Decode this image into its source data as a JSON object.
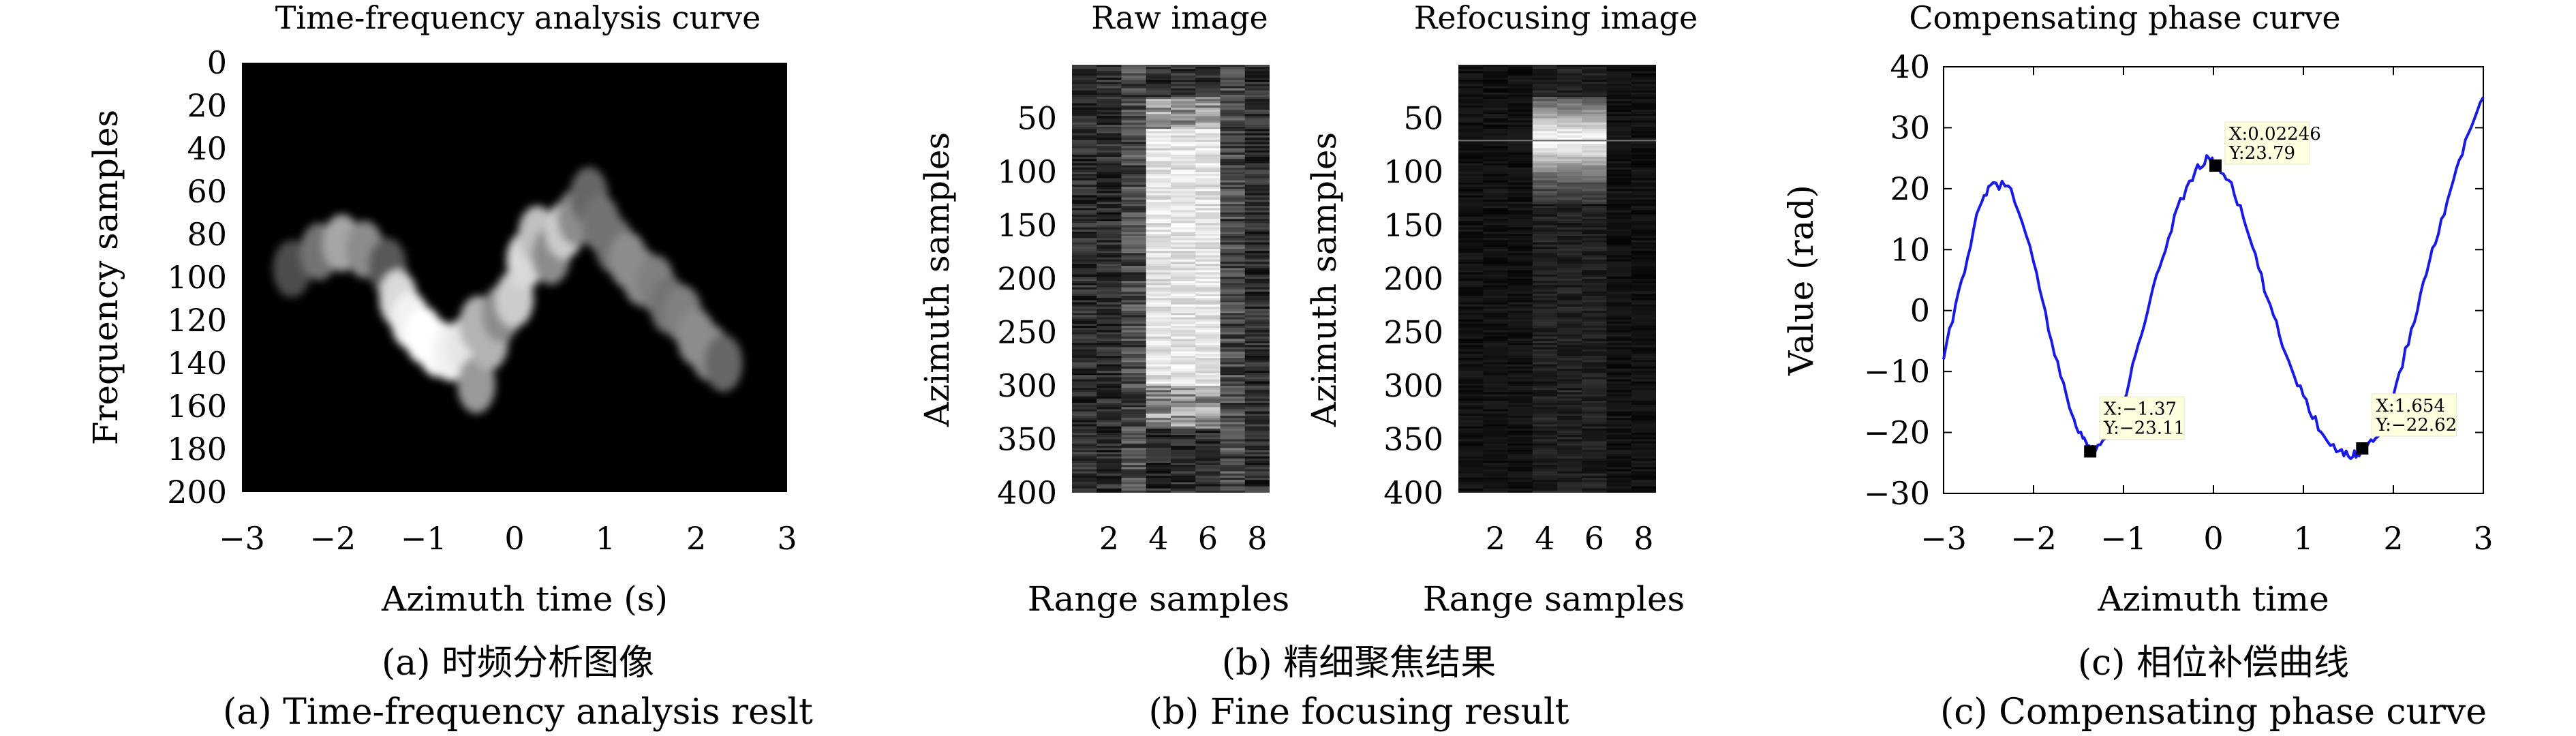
{
  "captions": {
    "a_cn": "(a) 时频分析图像",
    "a_en": "(a) Time-frequency analysis reslt",
    "b_cn": "(b) 精细聚焦结果",
    "b_en": "(b) Fine focusing result",
    "c_cn": "(c) 相位补偿曲线",
    "c_en": "(c) Compensating phase curve"
  },
  "chart_data": [
    {
      "type": "heatmap",
      "title": "Time-frequency analysis curve",
      "xlabel": "Azimuth time (s)",
      "ylabel": "Frequency samples",
      "xlim": [
        -3,
        3
      ],
      "ylim": [
        200,
        0
      ],
      "xticks": [
        "-3",
        "-2",
        "-1",
        "0",
        "1",
        "2",
        "3"
      ],
      "yticks": [
        "0",
        "20",
        "40",
        "60",
        "80",
        "100",
        "120",
        "140",
        "160",
        "180",
        "200"
      ],
      "colormap": "gray",
      "ridge": [
        {
          "x": -2.45,
          "y": 96,
          "w": 0.3
        },
        {
          "x": -2.15,
          "y": 88,
          "w": 0.45
        },
        {
          "x": -1.9,
          "y": 84,
          "w": 0.65
        },
        {
          "x": -1.65,
          "y": 87,
          "w": 0.55
        },
        {
          "x": -1.4,
          "y": 95,
          "w": 0.35
        },
        {
          "x": -1.28,
          "y": 110,
          "w": 0.85
        },
        {
          "x": -1.15,
          "y": 120,
          "w": 0.95
        },
        {
          "x": -1.0,
          "y": 127,
          "w": 1.0
        },
        {
          "x": -0.85,
          "y": 133,
          "w": 1.0
        },
        {
          "x": -0.7,
          "y": 135,
          "w": 0.95
        },
        {
          "x": -0.55,
          "y": 132,
          "w": 0.9
        },
        {
          "x": -0.42,
          "y": 150,
          "w": 0.6
        },
        {
          "x": -0.4,
          "y": 122,
          "w": 0.7
        },
        {
          "x": -0.28,
          "y": 130,
          "w": 0.7
        },
        {
          "x": -0.15,
          "y": 117,
          "w": 0.55
        },
        {
          "x": 0.0,
          "y": 110,
          "w": 0.8
        },
        {
          "x": 0.12,
          "y": 92,
          "w": 0.85
        },
        {
          "x": 0.25,
          "y": 80,
          "w": 0.75
        },
        {
          "x": 0.4,
          "y": 90,
          "w": 0.55
        },
        {
          "x": 0.55,
          "y": 78,
          "w": 0.8
        },
        {
          "x": 0.68,
          "y": 72,
          "w": 0.55
        },
        {
          "x": 0.82,
          "y": 62,
          "w": 0.4
        },
        {
          "x": 0.95,
          "y": 75,
          "w": 0.45
        },
        {
          "x": 1.1,
          "y": 85,
          "w": 0.45
        },
        {
          "x": 1.25,
          "y": 92,
          "w": 0.55
        },
        {
          "x": 1.4,
          "y": 100,
          "w": 0.55
        },
        {
          "x": 1.55,
          "y": 103,
          "w": 0.5
        },
        {
          "x": 1.7,
          "y": 113,
          "w": 0.45
        },
        {
          "x": 1.85,
          "y": 117,
          "w": 0.5
        },
        {
          "x": 2.0,
          "y": 128,
          "w": 0.55
        },
        {
          "x": 2.15,
          "y": 135,
          "w": 0.55
        },
        {
          "x": 2.3,
          "y": 140,
          "w": 0.4
        }
      ]
    },
    {
      "type": "heatmap",
      "title": "Raw image",
      "xlabel": "Range samples",
      "ylabel": "Azimuth samples",
      "xlim": [
        0.5,
        8.5
      ],
      "ylim": [
        400,
        1
      ],
      "xticks": [
        "2",
        "4",
        "6",
        "8"
      ],
      "yticks": [
        "50",
        "100",
        "150",
        "200",
        "250",
        "300",
        "350",
        "400"
      ],
      "colormap": "gray",
      "bright_region": {
        "range_cols": [
          4,
          5,
          6
        ],
        "azimuth_rows": [
          60,
          300
        ]
      }
    },
    {
      "type": "heatmap",
      "title": "Refocusing image",
      "xlabel": "Range samples",
      "ylabel": "Azimuth samples",
      "xlim": [
        0.5,
        8.5
      ],
      "ylim": [
        400,
        1
      ],
      "xticks": [
        "2",
        "4",
        "6",
        "8"
      ],
      "yticks": [
        "50",
        "100",
        "150",
        "200",
        "250",
        "300",
        "350",
        "400"
      ],
      "colormap": "gray",
      "bright_region": {
        "range_cols": [
          4,
          5,
          6
        ],
        "azimuth_rows": [
          30,
          130
        ]
      }
    },
    {
      "type": "line",
      "title": "Compensating phase curve",
      "xlabel": "Azimuth time",
      "ylabel": "Value (rad)",
      "xlim": [
        -3,
        3
      ],
      "ylim": [
        -30,
        40
      ],
      "xticks": [
        "-3",
        "-2",
        "-1",
        "0",
        "1",
        "2",
        "3"
      ],
      "yticks": [
        "40",
        "30",
        "20",
        "10",
        "0",
        "-10",
        "-20",
        "-30"
      ],
      "series": [
        {
          "color": "#1a1ae6",
          "x": [
            -3.0,
            -2.8,
            -2.6,
            -2.45,
            -2.25,
            -2.0,
            -1.8,
            -1.6,
            -1.45,
            -1.37,
            -1.2,
            -1.0,
            -0.8,
            -0.6,
            -0.4,
            -0.2,
            -0.05,
            0.02246,
            0.2,
            0.4,
            0.6,
            0.8,
            1.0,
            1.2,
            1.4,
            1.55,
            1.654,
            1.8,
            2.0,
            2.2,
            2.4,
            2.6,
            2.8,
            3.0
          ],
          "y": [
            -8,
            5,
            17,
            21,
            20,
            8,
            -5,
            -16,
            -21,
            -23.11,
            -21,
            -15,
            -4,
            7,
            17,
            23,
            25,
            23.79,
            21,
            12,
            2,
            -7,
            -14,
            -20,
            -23,
            -24,
            -22.62,
            -21,
            -14,
            -3,
            8,
            18,
            28,
            35
          ]
        }
      ],
      "datatips": [
        {
          "x_label": "X:-1.37",
          "y_label": "Y:-23.11",
          "x": -1.37,
          "y": -23.11
        },
        {
          "x_label": "X:0.02246",
          "y_label": "Y:23.79",
          "x": 0.02246,
          "y": 23.79
        },
        {
          "x_label": "X:1.654",
          "y_label": "Y:-22.62",
          "x": 1.654,
          "y": -22.62
        }
      ]
    }
  ]
}
